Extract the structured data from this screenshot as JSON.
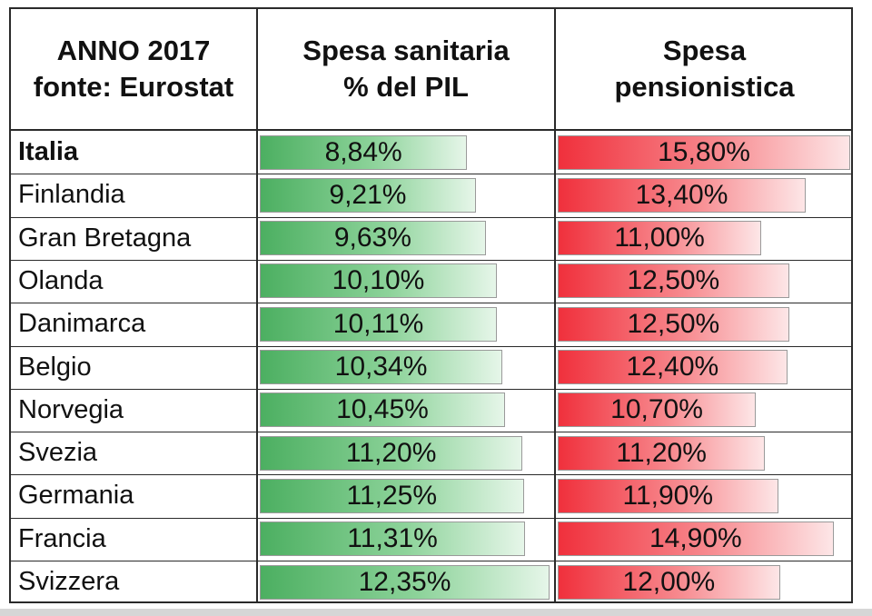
{
  "chart_data": {
    "type": "table",
    "headers": {
      "col1": [
        "ANNO 2017",
        "fonte: Eurostat"
      ],
      "col2": [
        "Spesa sanitaria",
        "% del PIL"
      ],
      "col3": [
        "Spesa",
        "pensionistica"
      ]
    },
    "rows": [
      {
        "country": "Italia",
        "health": 8.84,
        "health_label": "8,84%",
        "pension": 15.8,
        "pension_label": "15,80%",
        "bold": true
      },
      {
        "country": "Finlandia",
        "health": 9.21,
        "health_label": "9,21%",
        "pension": 13.4,
        "pension_label": "13,40%"
      },
      {
        "country": "Gran Bretagna",
        "health": 9.63,
        "health_label": "9,63%",
        "pension": 11.0,
        "pension_label": "11,00%"
      },
      {
        "country": "Olanda",
        "health": 10.1,
        "health_label": "10,10%",
        "pension": 12.5,
        "pension_label": "12,50%"
      },
      {
        "country": "Danimarca",
        "health": 10.11,
        "health_label": "10,11%",
        "pension": 12.5,
        "pension_label": "12,50%"
      },
      {
        "country": "Belgio",
        "health": 10.34,
        "health_label": "10,34%",
        "pension": 12.4,
        "pension_label": "12,40%"
      },
      {
        "country": "Norvegia",
        "health": 10.45,
        "health_label": "10,45%",
        "pension": 10.7,
        "pension_label": "10,70%"
      },
      {
        "country": "Svezia",
        "health": 11.2,
        "health_label": "11,20%",
        "pension": 11.2,
        "pension_label": "11,20%"
      },
      {
        "country": "Germania",
        "health": 11.25,
        "health_label": "11,25%",
        "pension": 11.9,
        "pension_label": "11,90%"
      },
      {
        "country": "Francia",
        "health": 11.31,
        "health_label": "11,31%",
        "pension": 14.9,
        "pension_label": "14,90%"
      },
      {
        "country": "Svizzera",
        "health": 12.35,
        "health_label": "12,35%",
        "pension": 12.0,
        "pension_label": "12,00%"
      }
    ],
    "colors": {
      "health_bar": "#4caf61",
      "pension_bar": "#f0303c"
    }
  }
}
